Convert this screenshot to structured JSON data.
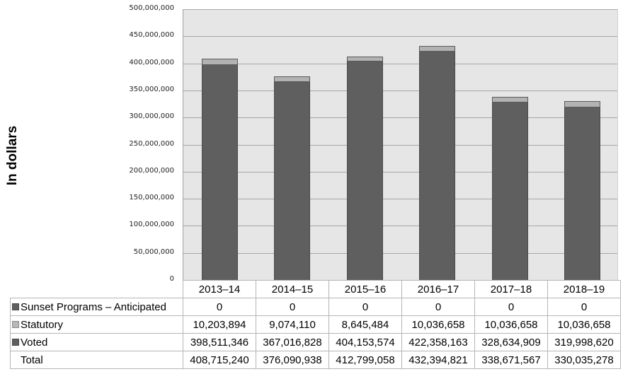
{
  "chart_data": {
    "type": "bar",
    "stacked": true,
    "title": "",
    "xlabel": "",
    "ylabel": "In dollars",
    "ylim": [
      0,
      500000000
    ],
    "yticks": [
      "0",
      "50,000,000",
      "100,000,000",
      "150,000,000",
      "200,000,000",
      "250,000,000",
      "300,000,000",
      "350,000,000",
      "400,000,000",
      "450,000,000",
      "500,000,000"
    ],
    "grid": true,
    "legend_position": "data-table",
    "categories": [
      "2013–14",
      "2014–15",
      "2015–16",
      "2016–17",
      "2017–18",
      "2018–19"
    ],
    "series": [
      {
        "name": "Sunset Programs – Anticipated",
        "color": "#5f5f5f",
        "values": [
          0,
          0,
          0,
          0,
          0,
          0
        ]
      },
      {
        "name": "Statutory",
        "color": "#b2b2b2",
        "values": [
          10203894,
          9074110,
          8645484,
          10036658,
          10036658,
          10036658
        ]
      },
      {
        "name": "Voted",
        "color": "#5f5f5f",
        "values": [
          398511346,
          367016828,
          404153574,
          422358163,
          328634909,
          319998620
        ]
      }
    ],
    "totals": [
      408715240,
      376090938,
      412799058,
      432394821,
      338671567,
      330035278
    ]
  },
  "ylabel": "In dollars",
  "table": {
    "headers": [
      "2013–14",
      "2014–15",
      "2015–16",
      "2016–17",
      "2017–18",
      "2018–19"
    ],
    "rows": [
      {
        "label": "Sunset Programs – Anticipated",
        "swatch": "dark",
        "cells": [
          "0",
          "0",
          "0",
          "0",
          "0",
          "0"
        ]
      },
      {
        "label": "Statutory",
        "swatch": "light",
        "cells": [
          "10,203,894",
          "9,074,110",
          "8,645,484",
          "10,036,658",
          "10,036,658",
          "10,036,658"
        ]
      },
      {
        "label": "Voted",
        "swatch": "dark",
        "cells": [
          "398,511,346",
          "367,016,828",
          "404,153,574",
          "422,358,163",
          "328,634,909",
          "319,998,620"
        ]
      },
      {
        "label": "Total",
        "swatch": "none",
        "cells": [
          "408,715,240",
          "376,090,938",
          "412,799,058",
          "432,394,821",
          "338,671,567",
          "330,035,278"
        ]
      }
    ]
  }
}
